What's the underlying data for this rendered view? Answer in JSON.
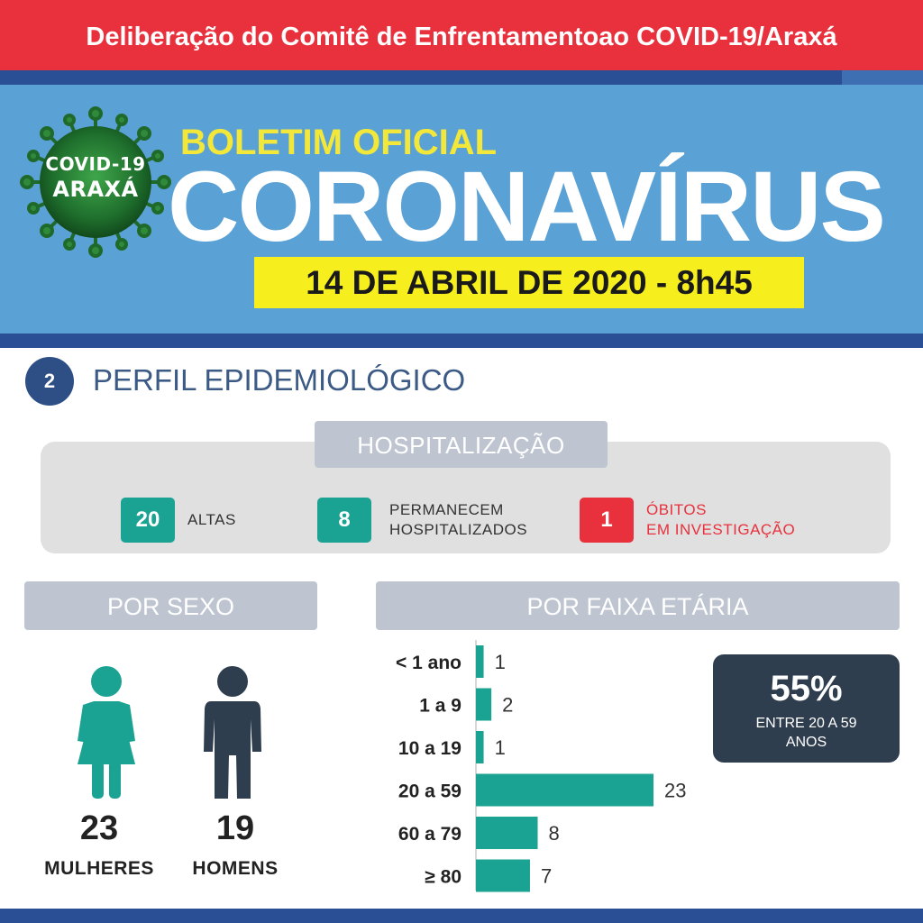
{
  "header": {
    "top_title": "Deliberação do Comitê de Enfrentamentoao COVID-19/Araxá",
    "badge_line1": "COVID-19",
    "badge_line2": "ARAXÁ",
    "bulletin": "BOLETIM OFICIAL",
    "headline": "CORONAVÍRUS",
    "date": "14 DE ABRIL DE 2020 - 8h45"
  },
  "section": {
    "number": "2",
    "title": "PERFIL EPIDEMIOLÓGICO"
  },
  "hospitalization": {
    "title": "HOSPITALIZAÇÃO",
    "stats": [
      {
        "value": "20",
        "line1": "ALTAS",
        "line2": "",
        "color": "#1aa392"
      },
      {
        "value": "8",
        "line1": "PERMANECEM",
        "line2": "HOSPITALIZADOS",
        "color": "#1aa392"
      },
      {
        "value": "1",
        "line1": "ÓBITOS",
        "line2": "EM INVESTIGAÇÃO",
        "color": "#e8313c"
      }
    ]
  },
  "by_sex": {
    "title": "POR SEXO",
    "female": {
      "value": "23",
      "label": "MULHERES",
      "color": "#1aa392"
    },
    "male": {
      "value": "19",
      "label": "HOMENS",
      "color": "#2f3e4f"
    }
  },
  "by_age": {
    "title": "POR FAIXA ETÁRIA"
  },
  "highlight": {
    "value": "55%",
    "line1": "ENTRE 20 A 59",
    "line2": "ANOS"
  },
  "chart_data": {
    "type": "bar",
    "orientation": "horizontal",
    "title": "POR FAIXA ETÁRIA",
    "categories": [
      "< 1 ano",
      "1 a 9",
      "10 a 19",
      "20 a 59",
      "60 a 79",
      "≥ 80"
    ],
    "values": [
      1,
      2,
      1,
      23,
      8,
      7
    ],
    "xlim": [
      0,
      23
    ],
    "grid": false,
    "bar_color": "#1aa392"
  },
  "colors": {
    "red": "#e8313c",
    "blue_band": "#5aa1d6",
    "navy": "#2b4f94",
    "teal": "#1aa392",
    "yellow": "#f6ef1d"
  }
}
